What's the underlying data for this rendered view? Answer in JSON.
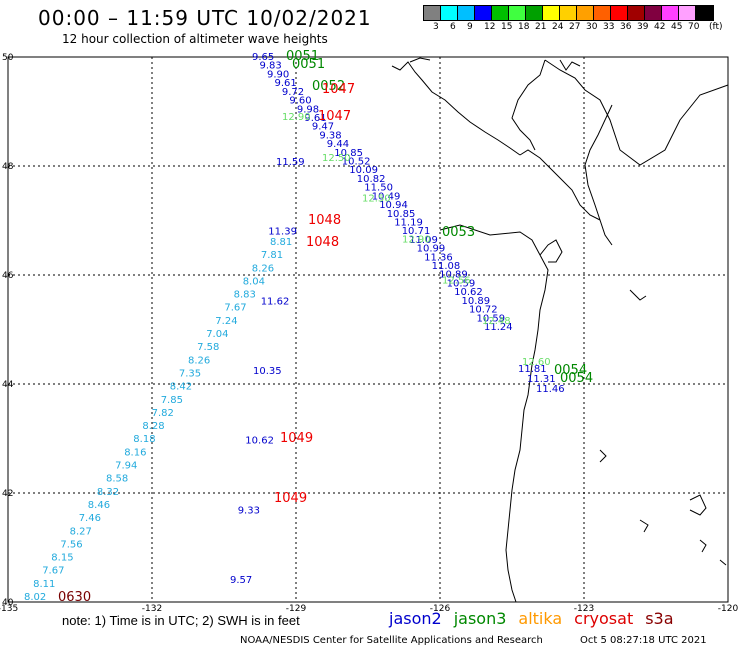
{
  "header": {
    "title": "00:00 – 11:59 UTC 10/02/2021",
    "subtitle": "12 hour collection of altimeter wave heights"
  },
  "legend": {
    "colors": [
      "#808080",
      "#00ffff",
      "#00bfff",
      "#0000ff",
      "#00bf00",
      "#40ff40",
      "#00a000",
      "#ffff00",
      "#ffd000",
      "#ffa000",
      "#ff6000",
      "#ff0000",
      "#a00000",
      "#800040",
      "#ff40ff",
      "#ffa0ff",
      "#000000"
    ],
    "labels": [
      "3",
      "6",
      "9",
      "12",
      "15",
      "18",
      "21",
      "24",
      "27",
      "30",
      "33",
      "36",
      "39",
      "42",
      "45",
      "70",
      "(ft)"
    ]
  },
  "axes": {
    "lon_labels": [
      "-135",
      "-132",
      "-129",
      "-126",
      "-123",
      "-120"
    ],
    "lat_labels": [
      "50",
      "48",
      "46",
      "44",
      "42",
      "40"
    ]
  },
  "satellites": [
    {
      "name": "jason2",
      "color": "#0000cc"
    },
    {
      "name": "jason3",
      "color": "#008800"
    },
    {
      "name": "altika",
      "color": "#ff9900"
    },
    {
      "name": "cryosat",
      "color": "#dd0000"
    },
    {
      "name": "s3a",
      "color": "#880000"
    }
  ],
  "colors": {
    "blue": "#0000cc",
    "cyan": "#22aadd",
    "lightgreen": "#66dd66",
    "green": "#008800",
    "red": "#ee0000",
    "darkred": "#770000"
  },
  "track_main": {
    "color_key": "blue",
    "values": [
      "9.65",
      "9.83",
      "9.90",
      "9.61",
      "9.72",
      "9.60",
      "9.98",
      "9.61",
      "9.47",
      "9.38",
      "9.44",
      "10.85",
      "10.52",
      "10.09",
      "10.82",
      "11.50",
      "10.49",
      "10.94",
      "10.85",
      "11.19",
      "10.71",
      "11.09",
      "10.99",
      "11.36",
      "11.08",
      "10.89",
      "10.59",
      "10.62",
      "10.89",
      "10.72",
      "10.59",
      "11.24"
    ]
  },
  "track_main_green": {
    "color_key": "lightgreen",
    "values": [
      "12.90",
      "12.50",
      "12.50",
      "12.90",
      "12.56",
      "12.48",
      "12.60"
    ]
  },
  "track_coast_blue": {
    "color_key": "blue",
    "values": [
      "11.81",
      "11.31",
      "11.46"
    ]
  },
  "track_west_blue": {
    "color_key": "blue",
    "values": [
      "11.59",
      "11.39",
      "11.62",
      "10.35",
      "10.62",
      "9.33",
      "9.57"
    ]
  },
  "track_west_cyan": {
    "color_key": "cyan",
    "values": [
      "8.81",
      "7.81",
      "8.26",
      "8.04",
      "8.83",
      "7.67",
      "7.24",
      "7.04",
      "7.58",
      "8.26",
      "7.35",
      "8.42",
      "7.85",
      "7.82",
      "8.28",
      "8.18",
      "8.16",
      "7.94",
      "8.58",
      "8.32",
      "8.46",
      "7.46",
      "8.27",
      "7.56",
      "8.15",
      "7.67",
      "8.11",
      "8.02"
    ]
  },
  "pass_labels": [
    {
      "text": "0051",
      "color_key": "green"
    },
    {
      "text": "0051",
      "color_key": "green"
    },
    {
      "text": "0052",
      "color_key": "green"
    },
    {
      "text": "1047",
      "color_key": "red"
    },
    {
      "text": "1047",
      "color_key": "red"
    },
    {
      "text": "0053",
      "color_key": "green"
    },
    {
      "text": "1048",
      "color_key": "red"
    },
    {
      "text": "1048",
      "color_key": "red"
    },
    {
      "text": "0054",
      "color_key": "green"
    },
    {
      "text": "0054",
      "color_key": "green"
    },
    {
      "text": "1049",
      "color_key": "red"
    },
    {
      "text": "1049",
      "color_key": "red"
    },
    {
      "text": "0630",
      "color_key": "darkred"
    }
  ],
  "footer": {
    "note": "note: 1) Time is in UTC; 2) SWH is in feet",
    "credit": "NOAA/NESDIS Center for Satellite Applications and Research",
    "timestamp": "Oct  5 08:27:18 UTC 2021"
  }
}
